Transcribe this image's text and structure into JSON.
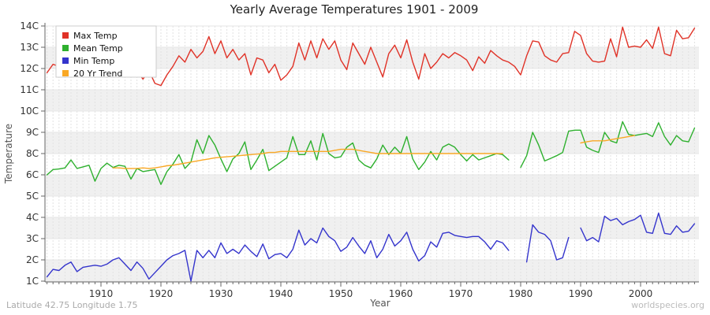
{
  "title": "Yearly Average Temperatures 1901 - 2009",
  "footer": {
    "left": "Latitude 42.75 Longitude 1.75",
    "right": "worldspecies.org"
  },
  "chart_data": {
    "type": "line",
    "title": "Yearly Average Temperatures 1901 - 2009",
    "xlabel": "Year",
    "ylabel": "Temperature",
    "x_start_year": 1901,
    "x_end_year": 2009,
    "x_tick_labels": [
      "1910",
      "1920",
      "1930",
      "1940",
      "1950",
      "1960",
      "1970",
      "1980",
      "1990",
      "2000"
    ],
    "y_tick_labels": [
      "14C",
      "13C",
      "12C",
      "11C",
      "10C",
      "9C",
      "8C",
      "6C",
      "5C",
      "4C",
      "3C",
      "2C",
      "1C"
    ],
    "y_tick_values": [
      14,
      13,
      12,
      11,
      10,
      9,
      8,
      6,
      5,
      4,
      3,
      2,
      1
    ],
    "grid": true,
    "legend_position": "top-left",
    "plot_bg_band_color": "#f0f0f0",
    "series": [
      {
        "id": "max",
        "name": "Max Temp",
        "color": "#e03227",
        "values": [
          11.8,
          12.2,
          12.1,
          12.4,
          12.6,
          12.1,
          12.3,
          12.4,
          11.7,
          11.9,
          12.5,
          12.0,
          12.4,
          12.2,
          11.7,
          11.9,
          11.5,
          11.9,
          11.3,
          11.2,
          11.7,
          12.1,
          12.6,
          12.3,
          12.9,
          12.5,
          12.8,
          13.5,
          12.7,
          13.3,
          12.5,
          12.9,
          12.4,
          12.7,
          11.7,
          12.5,
          12.4,
          11.8,
          12.2,
          11.45,
          11.7,
          12.1,
          13.2,
          12.4,
          13.3,
          12.5,
          13.4,
          12.9,
          13.3,
          12.4,
          11.95,
          13.2,
          12.7,
          12.2,
          13.0,
          12.3,
          11.6,
          12.7,
          13.1,
          12.5,
          13.35,
          12.3,
          11.5,
          12.7,
          12.0,
          12.3,
          12.7,
          12.5,
          12.75,
          12.6,
          12.4,
          11.9,
          12.55,
          12.25,
          12.85,
          12.6,
          12.4,
          12.3,
          12.1,
          11.7,
          12.6,
          13.3,
          13.25,
          12.6,
          12.4,
          12.3,
          12.7,
          12.75,
          13.75,
          13.55,
          12.7,
          12.35,
          12.3,
          12.35,
          13.4,
          12.55,
          13.95,
          13.0,
          13.05,
          13.0,
          13.35,
          12.95,
          13.95,
          12.7,
          12.6,
          13.8,
          13.4,
          13.45,
          13.9
        ]
      },
      {
        "id": "mean",
        "name": "Mean Temp",
        "color": "#2eb02e",
        "values": [
          6.0,
          6.5,
          6.55,
          6.65,
          7.4,
          6.6,
          6.75,
          6.9,
          5.7,
          6.6,
          7.1,
          6.7,
          6.9,
          6.8,
          5.8,
          6.6,
          6.3,
          6.4,
          6.5,
          5.55,
          6.3,
          7.0,
          7.9,
          6.6,
          7.2,
          8.65,
          8.0,
          8.85,
          8.4,
          7.5,
          6.3,
          7.5,
          8.0,
          8.55,
          6.5,
          7.4,
          8.2,
          6.4,
          6.8,
          7.2,
          7.6,
          8.8,
          7.9,
          7.9,
          8.6,
          7.4,
          8.95,
          8.0,
          7.6,
          7.7,
          8.3,
          8.5,
          7.4,
          6.9,
          6.65,
          7.5,
          8.4,
          7.9,
          8.3,
          8.0,
          8.8,
          7.5,
          6.5,
          7.2,
          8.1,
          7.4,
          8.3,
          8.45,
          8.3,
          7.9,
          7.3,
          7.9,
          7.4,
          7.6,
          7.8,
          8.0,
          7.9,
          7.4,
          null,
          6.7,
          7.8,
          9.0,
          8.4,
          7.3,
          7.55,
          7.8,
          8.05,
          9.05,
          9.1,
          9.1,
          8.3,
          8.15,
          8.05,
          9.0,
          8.6,
          8.5,
          9.5,
          8.9,
          8.85,
          8.9,
          8.95,
          8.8,
          9.45,
          8.8,
          8.4,
          8.85,
          8.6,
          8.55,
          9.2
        ]
      },
      {
        "id": "min",
        "name": "Min Temp",
        "color": "#3434cc",
        "values": [
          1.2,
          1.55,
          1.5,
          1.75,
          1.9,
          1.45,
          1.65,
          1.7,
          1.75,
          1.7,
          1.8,
          2.0,
          2.1,
          1.8,
          1.5,
          1.9,
          1.6,
          1.1,
          1.4,
          1.7,
          2.0,
          2.2,
          2.3,
          2.45,
          1.0,
          2.45,
          2.1,
          2.45,
          2.1,
          2.8,
          2.3,
          2.5,
          2.3,
          2.7,
          2.4,
          2.15,
          2.75,
          2.05,
          2.25,
          2.3,
          2.1,
          2.5,
          3.4,
          2.7,
          3.0,
          2.8,
          3.5,
          3.1,
          2.9,
          2.4,
          2.6,
          3.05,
          2.65,
          2.3,
          2.9,
          2.1,
          2.5,
          3.2,
          2.65,
          2.9,
          3.3,
          2.5,
          1.95,
          2.2,
          2.85,
          2.6,
          3.25,
          3.3,
          3.15,
          3.1,
          3.05,
          3.1,
          3.1,
          2.85,
          2.5,
          2.9,
          2.8,
          2.45,
          null,
          null,
          1.9,
          3.65,
          3.3,
          3.2,
          2.9,
          2.0,
          2.1,
          3.05,
          null,
          3.5,
          2.9,
          3.05,
          2.85,
          4.05,
          3.85,
          3.95,
          3.65,
          3.8,
          3.9,
          4.1,
          3.3,
          3.25,
          4.2,
          3.25,
          3.2,
          3.6,
          3.3,
          3.35,
          3.7
        ]
      },
      {
        "id": "trend",
        "name": "20 Yr Trend",
        "color": "#f9a825",
        "values": [
          null,
          null,
          null,
          null,
          null,
          null,
          null,
          null,
          null,
          null,
          null,
          6.65,
          6.65,
          6.6,
          6.6,
          6.6,
          6.65,
          6.6,
          6.65,
          6.75,
          6.85,
          6.9,
          7.0,
          7.1,
          7.2,
          7.3,
          7.4,
          7.5,
          7.6,
          7.65,
          7.7,
          7.75,
          7.8,
          7.85,
          7.9,
          7.95,
          8.0,
          8.05,
          8.05,
          8.1,
          8.1,
          8.1,
          8.1,
          8.1,
          8.1,
          8.1,
          8.1,
          8.1,
          8.15,
          8.2,
          8.2,
          8.2,
          8.15,
          8.1,
          8.05,
          8.0,
          8.0,
          8.0,
          8.0,
          8.0,
          8.0,
          8.0,
          8.0,
          8.0,
          8.0,
          8.0,
          8.0,
          8.0,
          8.0,
          8.0,
          8.0,
          8.0,
          8.0,
          8.0,
          8.0,
          8.0,
          8.0,
          null,
          null,
          null,
          null,
          null,
          null,
          null,
          null,
          null,
          null,
          null,
          null,
          8.5,
          8.55,
          8.6,
          8.6,
          8.6,
          8.65,
          8.7,
          8.75,
          8.8,
          8.85,
          null,
          null,
          null,
          null,
          null,
          null,
          null,
          null,
          null,
          null
        ]
      }
    ]
  }
}
